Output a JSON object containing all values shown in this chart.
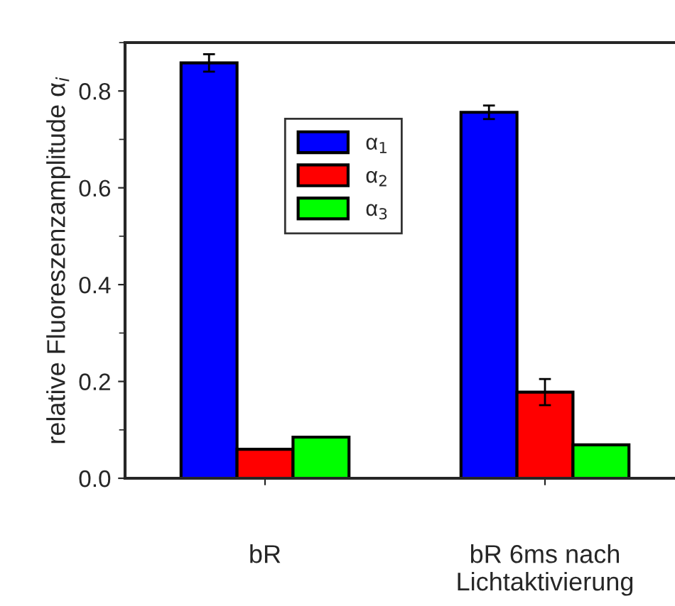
{
  "chart_data": {
    "type": "bar",
    "ylabel": "relative Fluoreszenzamplitude α$_{i}$",
    "categories": [
      "bR",
      "bR 6ms nach\nLichtaktivierung"
    ],
    "series": [
      {
        "name": "α$_{1}$",
        "color": "#0000ff",
        "values": [
          0.858,
          0.756
        ],
        "errors": [
          0.018,
          0.014
        ]
      },
      {
        "name": "α$_{2}$",
        "color": "#ff0000",
        "values": [
          0.06,
          0.178
        ],
        "errors": [
          null,
          0.027
        ]
      },
      {
        "name": "α$_{3}$",
        "color": "#00ff00",
        "values": [
          0.085,
          0.069
        ]
      }
    ],
    "ylim": [
      0,
      0.9
    ],
    "yticks": [
      {
        "value": 0,
        "label": "0.0"
      },
      {
        "value": 0.2,
        "label": "0.2"
      },
      {
        "value": 0.4,
        "label": "0.4"
      },
      {
        "value": 0.6,
        "label": "0.6"
      },
      {
        "value": 0.8,
        "label": "0.8"
      }
    ],
    "grid": false,
    "legend": "top"
  }
}
